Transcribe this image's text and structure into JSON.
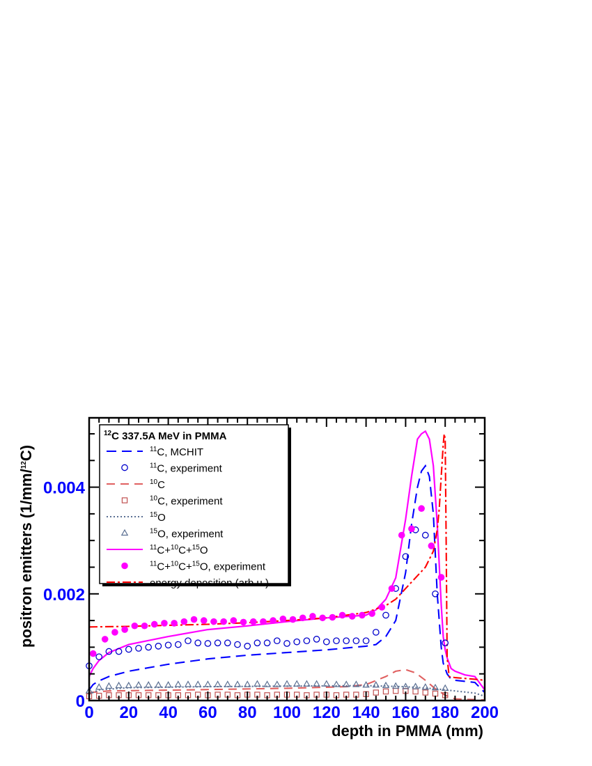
{
  "chart_data": {
    "type": "line",
    "xlabel": "depth in PMMA (mm)",
    "ylabel": "positron emitters (1/mm/",
    "ylabel_sup": "12",
    "ylabel_tail": "C)",
    "xlim": [
      0,
      200
    ],
    "ylim": [
      0,
      0.0053
    ],
    "x_ticks": [
      "0",
      "20",
      "40",
      "60",
      "80",
      "100",
      "120",
      "140",
      "160",
      "180",
      "200"
    ],
    "y_ticks": [
      {
        "v": 0,
        "label": "0"
      },
      {
        "v": 0.002,
        "label": "0.002"
      },
      {
        "v": 0.004,
        "label": "0.004"
      }
    ],
    "legend": {
      "title_sup": "12",
      "title": "C 337.5A MeV in PMMA",
      "entries": [
        {
          "key": "c11_sim",
          "sup": "11",
          "label": "C, MCHIT"
        },
        {
          "key": "c11_exp",
          "sup": "11",
          "label": "C, experiment"
        },
        {
          "key": "c10_sim",
          "sup": "10",
          "label": "C"
        },
        {
          "key": "c10_exp",
          "sup": "10",
          "label": "C, experiment"
        },
        {
          "key": "o15_sim",
          "sup": "15",
          "label": "O"
        },
        {
          "key": "o15_exp",
          "sup": "15",
          "label": "O, experiment"
        },
        {
          "key": "sum_sim",
          "parts": [
            [
              "11",
              "C+"
            ],
            [
              "10",
              "C+"
            ],
            [
              "15",
              "O"
            ]
          ]
        },
        {
          "key": "sum_exp",
          "parts": [
            [
              "11",
              "C+"
            ],
            [
              "10",
              "C+"
            ],
            [
              "15",
              "O, experiment"
            ]
          ]
        },
        {
          "key": "edep",
          "label": "energy deposition (arb.u.)"
        }
      ]
    },
    "series": [
      {
        "key": "c11_sim",
        "kind": "line",
        "color": "#0000ff",
        "dash": "14,8",
        "x": [
          0,
          2,
          5,
          10,
          20,
          40,
          60,
          80,
          100,
          120,
          140,
          145,
          150,
          155,
          160,
          163,
          166,
          168,
          170,
          172,
          174,
          176,
          178,
          179,
          180,
          181,
          183,
          185,
          190,
          195,
          200
        ],
        "y": [
          0.0002,
          0.0003,
          0.00037,
          0.00045,
          0.00055,
          0.00068,
          0.00078,
          0.00085,
          0.0009,
          0.00095,
          0.00102,
          0.00105,
          0.0012,
          0.0015,
          0.0024,
          0.0033,
          0.004,
          0.0043,
          0.0044,
          0.0042,
          0.0035,
          0.002,
          0.001,
          0.0007,
          0.0006,
          0.0005,
          0.0004,
          0.00038,
          0.00036,
          0.00034,
          0.00015
        ]
      },
      {
        "key": "c10_sim",
        "kind": "line",
        "color": "#e06060",
        "dash": "12,8",
        "x": [
          0,
          10,
          50,
          100,
          130,
          140,
          150,
          155,
          160,
          165,
          170,
          175,
          180,
          185,
          200
        ],
        "y": [
          0.00015,
          0.00018,
          0.0002,
          0.00023,
          0.00026,
          0.0003,
          0.00045,
          0.00055,
          0.00058,
          0.00052,
          0.00038,
          0.00022,
          0.0001,
          3e-05,
          1e-05
        ]
      },
      {
        "key": "o15_sim",
        "kind": "line",
        "color": "#5a6f92",
        "dash": "2,3",
        "x": [
          0,
          5,
          20,
          60,
          100,
          140,
          160,
          175,
          185,
          195,
          200
        ],
        "y": [
          0.00012,
          0.0002,
          0.00024,
          0.00026,
          0.00027,
          0.00028,
          0.00026,
          0.00022,
          0.00018,
          0.00014,
          8e-05
        ]
      },
      {
        "key": "sum_sim",
        "kind": "line",
        "color": "#ff00ff",
        "dash": "",
        "x": [
          0,
          2,
          5,
          10,
          20,
          40,
          60,
          80,
          100,
          120,
          140,
          145,
          150,
          155,
          160,
          163,
          166,
          168,
          170,
          172,
          174,
          176,
          178,
          179,
          180,
          181,
          183,
          185,
          190,
          195,
          200
        ],
        "y": [
          0.00045,
          0.0006,
          0.00075,
          0.0009,
          0.00105,
          0.0012,
          0.00133,
          0.0014,
          0.00148,
          0.00155,
          0.0016,
          0.0017,
          0.0019,
          0.0023,
          0.0034,
          0.0042,
          0.0049,
          0.005,
          0.00505,
          0.0049,
          0.0044,
          0.0033,
          0.0018,
          0.0012,
          0.00095,
          0.0008,
          0.0006,
          0.00055,
          0.00048,
          0.00045,
          0.0002
        ]
      },
      {
        "key": "edep",
        "kind": "line",
        "color": "#ff0000",
        "dash": "12,4,3,4",
        "x": [
          0,
          20,
          40,
          60,
          80,
          100,
          120,
          140,
          150,
          155,
          160,
          165,
          170,
          174,
          176,
          177,
          178,
          179,
          179.5,
          180,
          180.5,
          181,
          182,
          185,
          195,
          200
        ],
        "y": [
          0.00138,
          0.00139,
          0.00141,
          0.00143,
          0.00146,
          0.0015,
          0.00155,
          0.00165,
          0.00178,
          0.0019,
          0.0021,
          0.0023,
          0.0025,
          0.0028,
          0.0032,
          0.0036,
          0.0042,
          0.0048,
          0.005,
          0.0049,
          0.003,
          0.0008,
          0.00045,
          0.00043,
          0.0004,
          0.00038
        ]
      },
      {
        "key": "c11_exp",
        "kind": "points",
        "marker": "circle-open",
        "color": "#0000cc",
        "x": [
          0,
          5,
          10,
          15,
          20,
          25,
          30,
          35,
          40,
          45,
          50,
          55,
          60,
          65,
          70,
          75,
          80,
          85,
          90,
          95,
          100,
          105,
          110,
          115,
          120,
          125,
          130,
          135,
          140,
          145,
          150,
          155,
          160,
          165,
          170,
          175,
          180
        ],
        "y": [
          0.00065,
          0.00082,
          0.00092,
          0.00092,
          0.00096,
          0.00098,
          0.001,
          0.00102,
          0.00104,
          0.00105,
          0.00112,
          0.00108,
          0.00107,
          0.00108,
          0.00108,
          0.00105,
          0.00102,
          0.00108,
          0.00108,
          0.00112,
          0.00107,
          0.0011,
          0.00112,
          0.00115,
          0.0011,
          0.00112,
          0.00112,
          0.00112,
          0.00112,
          0.00128,
          0.0016,
          0.0021,
          0.0027,
          0.0032,
          0.0031,
          0.002,
          0.00108
        ]
      },
      {
        "key": "sum_exp",
        "kind": "points",
        "marker": "circle-filled",
        "color": "#ff00ff",
        "x": [
          2,
          8,
          13,
          18,
          23,
          28,
          33,
          38,
          43,
          48,
          53,
          58,
          63,
          68,
          73,
          78,
          83,
          88,
          93,
          98,
          103,
          108,
          113,
          118,
          123,
          128,
          133,
          138,
          143,
          148,
          153,
          158,
          163,
          168,
          173,
          178
        ],
        "y": [
          0.00088,
          0.00115,
          0.00128,
          0.00133,
          0.0014,
          0.0014,
          0.00143,
          0.00145,
          0.00145,
          0.00148,
          0.00152,
          0.0015,
          0.00148,
          0.00148,
          0.0015,
          0.00147,
          0.00148,
          0.00148,
          0.0015,
          0.00153,
          0.00152,
          0.00155,
          0.00158,
          0.00155,
          0.00156,
          0.0016,
          0.00158,
          0.0016,
          0.00163,
          0.00175,
          0.0021,
          0.0031,
          0.00322,
          0.0036,
          0.0029,
          0.00231
        ]
      },
      {
        "key": "c10_exp",
        "kind": "points",
        "marker": "square-open",
        "color": "#c05050",
        "x": [
          0,
          5,
          10,
          15,
          20,
          25,
          30,
          35,
          40,
          45,
          50,
          55,
          60,
          65,
          70,
          75,
          80,
          85,
          90,
          95,
          100,
          105,
          110,
          115,
          120,
          125,
          130,
          135,
          140,
          145,
          150,
          155,
          160,
          165,
          170,
          175,
          180
        ],
        "y": [
          8e-05,
          9e-05,
          0.0001,
          0.0001,
          0.0001,
          0.0001,
          0.0001,
          0.0001,
          0.0001,
          0.0001,
          0.0001,
          0.00011,
          0.0001,
          0.00011,
          0.00011,
          0.0001,
          0.00011,
          0.00011,
          0.0001,
          0.00011,
          0.00011,
          0.00011,
          0.0001,
          0.00011,
          0.00011,
          0.0001,
          0.00011,
          0.00011,
          0.00012,
          0.00015,
          0.00017,
          0.00018,
          0.00018,
          0.00017,
          0.00015,
          0.00013,
          0.0001
        ]
      },
      {
        "key": "o15_exp",
        "kind": "points",
        "marker": "triangle-open",
        "color": "#5a6f92",
        "x": [
          0,
          5,
          10,
          15,
          20,
          25,
          30,
          35,
          40,
          45,
          50,
          55,
          60,
          65,
          70,
          75,
          80,
          85,
          90,
          95,
          100,
          105,
          110,
          115,
          120,
          125,
          130,
          135,
          140,
          145,
          150,
          155,
          160,
          165,
          170,
          175,
          180
        ],
        "y": [
          0.00018,
          0.00025,
          0.00027,
          0.00028,
          0.00028,
          0.00029,
          0.00029,
          0.00029,
          0.00029,
          0.0003,
          0.0003,
          0.0003,
          0.0003,
          0.0003,
          0.0003,
          0.0003,
          0.0003,
          0.00031,
          0.0003,
          0.0003,
          0.00031,
          0.00031,
          0.00031,
          0.00031,
          0.00031,
          0.0003,
          0.0003,
          0.0003,
          0.00029,
          0.00029,
          0.00028,
          0.00027,
          0.00026,
          0.00026,
          0.00025,
          0.00024,
          0.00023
        ]
      }
    ]
  }
}
